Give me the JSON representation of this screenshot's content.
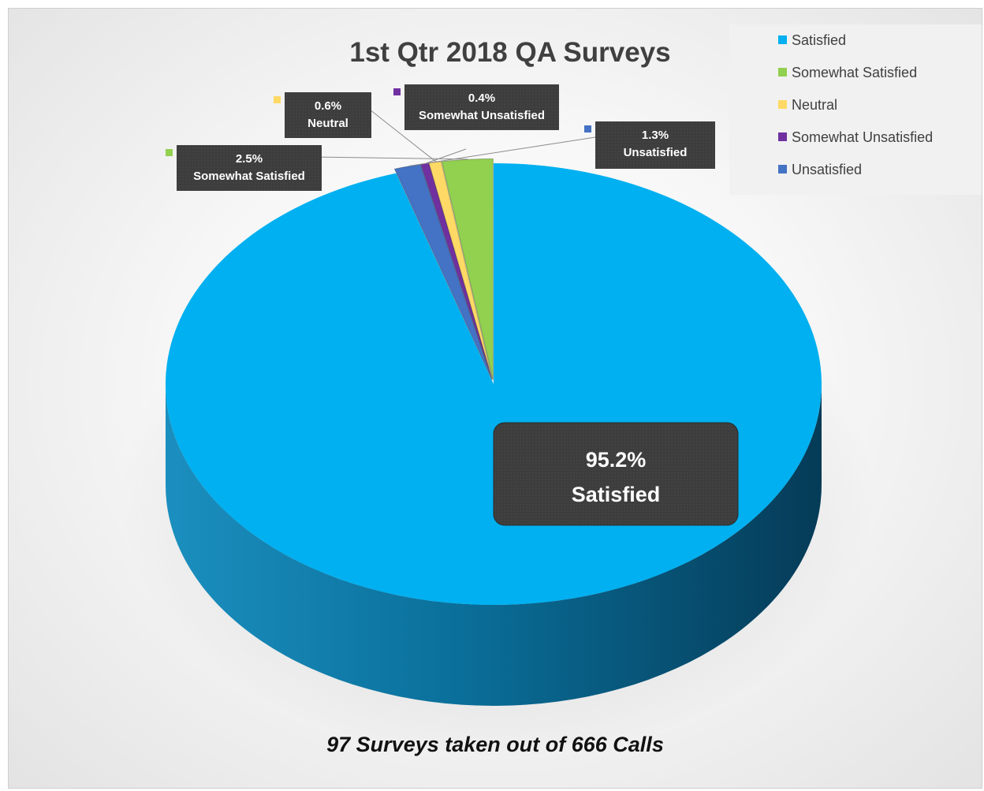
{
  "chart_data": {
    "type": "pie",
    "title": "1st Qtr 2018 QA Surveys",
    "subtitle": "97 Surveys taken out of 666 Calls",
    "legend_position": "top-right",
    "categories": [
      "Satisfied",
      "Somewhat Satisfied",
      "Neutral",
      "Somewhat Unsatisfied",
      "Unsatisfied"
    ],
    "values": [
      95.2,
      2.5,
      0.6,
      0.4,
      1.3
    ],
    "data_labels": [
      {
        "value": "95.2%",
        "category": "Satisfied"
      },
      {
        "value": "2.5%",
        "category": "Somewhat Satisfied"
      },
      {
        "value": "0.6%",
        "category": "Neutral"
      },
      {
        "value": "0.4%",
        "category": "Somewhat Unsatisfied"
      },
      {
        "value": "1.3%",
        "category": "Unsatisfied"
      }
    ],
    "colors": [
      "#00b0f0",
      "#92d050",
      "#ffd966",
      "#7030a0",
      "#4472c4"
    ]
  }
}
